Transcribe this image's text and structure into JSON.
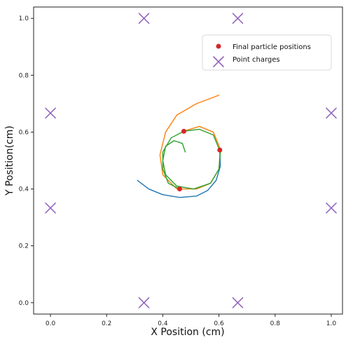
{
  "chart_data": {
    "type": "scatter",
    "title": "",
    "xlabel": "X Position (cm)",
    "ylabel": "Y Position(cm)",
    "xlim": [
      -0.06,
      1.04
    ],
    "ylim": [
      -0.04,
      1.04
    ],
    "grid": false,
    "legend_placement": "upper right",
    "legend": {
      "final_label": "Final particle positions",
      "charges_label": "Point charges"
    },
    "x_ticks": [
      "0.0",
      "0.2",
      "0.4",
      "0.6",
      "0.8",
      "1.0"
    ],
    "y_ticks": [
      "0.0",
      "0.2",
      "0.4",
      "0.6",
      "0.8",
      "1.0"
    ],
    "series": [
      {
        "name": "Final particle positions",
        "color": "#d62728",
        "points": [
          {
            "x": 0.475,
            "y": 0.603
          },
          {
            "x": 0.603,
            "y": 0.537
          },
          {
            "x": 0.46,
            "y": 0.4
          }
        ]
      },
      {
        "name": "Point charges",
        "color": "#9467bd",
        "points": [
          {
            "x": 0.333,
            "y": 1.0
          },
          {
            "x": 0.667,
            "y": 1.0
          },
          {
            "x": 0.0,
            "y": 0.667
          },
          {
            "x": 1.0,
            "y": 0.667
          },
          {
            "x": 0.0,
            "y": 0.333
          },
          {
            "x": 1.0,
            "y": 0.333
          },
          {
            "x": 0.333,
            "y": 0.0
          },
          {
            "x": 0.667,
            "y": 0.0
          }
        ]
      }
    ],
    "trajectories": [
      {
        "color": "#ff7f0e",
        "points": [
          {
            "x": 0.6,
            "y": 0.73
          },
          {
            "x": 0.52,
            "y": 0.7
          },
          {
            "x": 0.45,
            "y": 0.66
          },
          {
            "x": 0.41,
            "y": 0.6
          },
          {
            "x": 0.39,
            "y": 0.52
          },
          {
            "x": 0.4,
            "y": 0.45
          },
          {
            "x": 0.45,
            "y": 0.4
          },
          {
            "x": 0.52,
            "y": 0.4
          },
          {
            "x": 0.57,
            "y": 0.42
          },
          {
            "x": 0.6,
            "y": 0.47
          },
          {
            "x": 0.605,
            "y": 0.54
          },
          {
            "x": 0.58,
            "y": 0.6
          },
          {
            "x": 0.53,
            "y": 0.62
          },
          {
            "x": 0.475,
            "y": 0.603
          }
        ]
      },
      {
        "color": "#1f77b4",
        "points": [
          {
            "x": 0.31,
            "y": 0.43
          },
          {
            "x": 0.35,
            "y": 0.4
          },
          {
            "x": 0.4,
            "y": 0.38
          },
          {
            "x": 0.46,
            "y": 0.37
          },
          {
            "x": 0.52,
            "y": 0.375
          },
          {
            "x": 0.56,
            "y": 0.395
          },
          {
            "x": 0.59,
            "y": 0.43
          },
          {
            "x": 0.605,
            "y": 0.48
          },
          {
            "x": 0.603,
            "y": 0.537
          }
        ]
      },
      {
        "color": "#2ca02c",
        "points": [
          {
            "x": 0.48,
            "y": 0.53
          },
          {
            "x": 0.47,
            "y": 0.56
          },
          {
            "x": 0.44,
            "y": 0.57
          },
          {
            "x": 0.41,
            "y": 0.55
          },
          {
            "x": 0.4,
            "y": 0.5
          },
          {
            "x": 0.41,
            "y": 0.45
          },
          {
            "x": 0.45,
            "y": 0.41
          },
          {
            "x": 0.51,
            "y": 0.4
          },
          {
            "x": 0.57,
            "y": 0.42
          },
          {
            "x": 0.6,
            "y": 0.47
          },
          {
            "x": 0.605,
            "y": 0.53
          },
          {
            "x": 0.58,
            "y": 0.59
          },
          {
            "x": 0.53,
            "y": 0.61
          },
          {
            "x": 0.475,
            "y": 0.603
          },
          {
            "x": 0.43,
            "y": 0.58
          },
          {
            "x": 0.4,
            "y": 0.53
          },
          {
            "x": 0.4,
            "y": 0.47
          },
          {
            "x": 0.42,
            "y": 0.42
          },
          {
            "x": 0.46,
            "y": 0.4
          }
        ]
      }
    ]
  }
}
